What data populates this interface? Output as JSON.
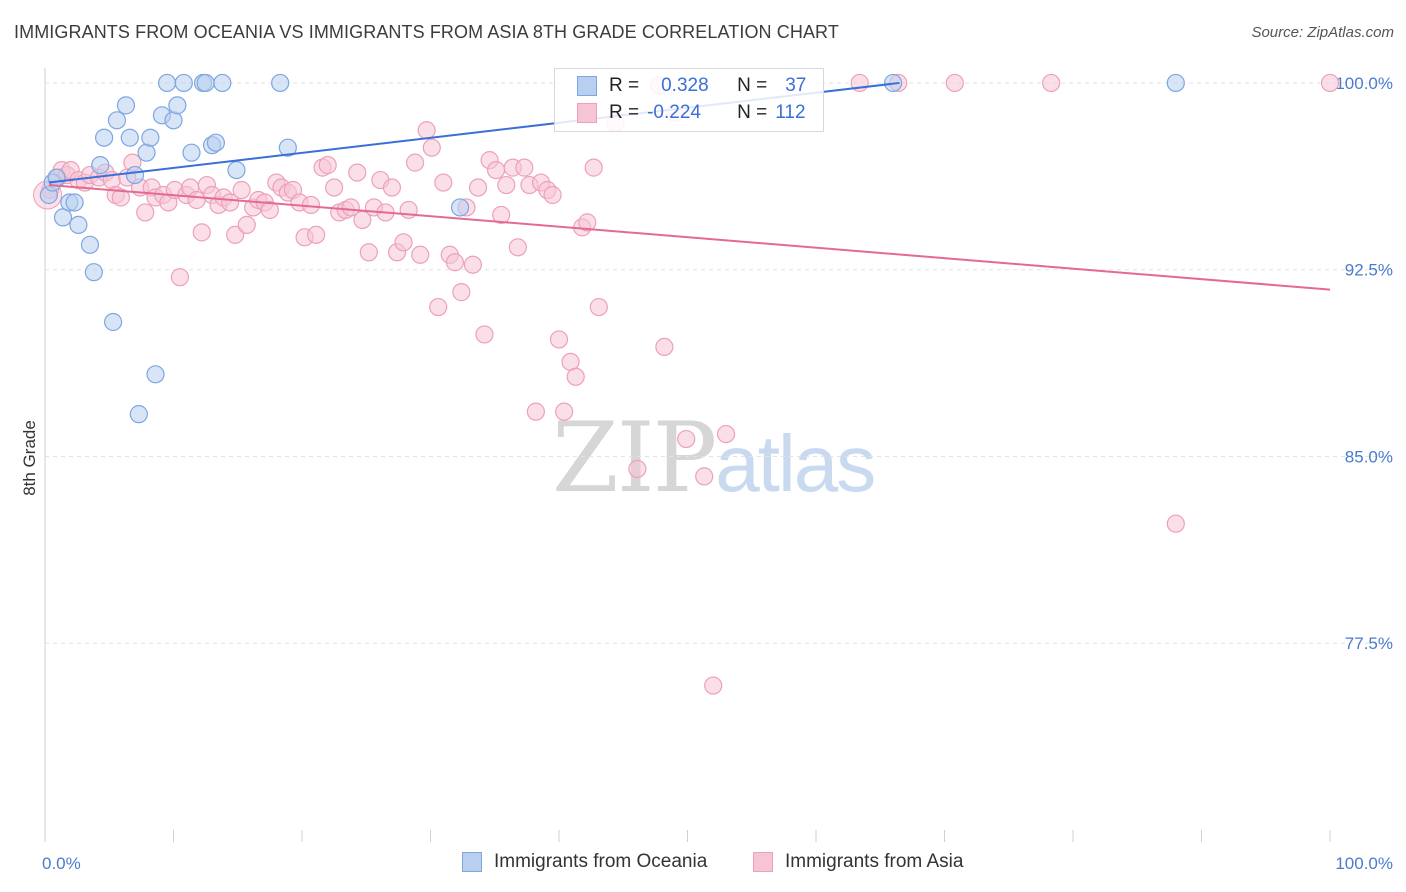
{
  "title": "IMMIGRANTS FROM OCEANIA VS IMMIGRANTS FROM ASIA 8TH GRADE CORRELATION CHART",
  "source": "Source: ZipAtlas.com",
  "legend": {
    "rows": [
      {
        "r_label": "R =",
        "r_value": "0.328",
        "n_label": "N =",
        "n_value": "37",
        "color": "#7ea6e0"
      },
      {
        "r_label": "R =",
        "r_value": "-0.224",
        "n_label": "N =",
        "n_value": "112",
        "color": "#f0a0bc"
      }
    ]
  },
  "bottom_legend": [
    "Immigrants from Oceania",
    "Immigrants from Asia"
  ],
  "watermark": {
    "zip": "ZIP",
    "atlas": "atlas"
  },
  "colors": {
    "blue_fill": "#b8cff0",
    "blue_stroke": "#7ea6e0",
    "blue_line": "#3a6fd8",
    "pink_fill": "#f7c4d5",
    "pink_stroke": "#eda0bb",
    "pink_line": "#e46a92",
    "tick_text": "#4a7bd0"
  },
  "chart_data": {
    "type": "scatter",
    "title": "IMMIGRANTS FROM OCEANIA VS IMMIGRANTS FROM ASIA 8TH GRADE CORRELATION CHART",
    "xlabel": "",
    "ylabel": "8th Grade",
    "xlim": [
      0,
      100
    ],
    "ylim": [
      70.0,
      100.6
    ],
    "x_tick_labels": [
      "0.0%",
      "100.0%"
    ],
    "y_ticks": [
      77.5,
      85.0,
      92.5,
      100.0
    ],
    "y_tick_labels": [
      "77.5%",
      "85.0%",
      "92.5%",
      "100.0%"
    ],
    "series": [
      {
        "name": "Immigrants from Oceania",
        "r": 0.328,
        "n": 37,
        "trend": {
          "x": [
            0.3,
            66.5
          ],
          "y": [
            96.0,
            100.0
          ]
        },
        "points": [
          [
            0.3,
            95.5
          ],
          [
            0.6,
            96.0
          ],
          [
            0.9,
            96.2
          ],
          [
            1.4,
            94.6
          ],
          [
            1.9,
            95.2
          ],
          [
            2.3,
            95.2
          ],
          [
            2.6,
            94.3
          ],
          [
            3.5,
            93.5
          ],
          [
            3.8,
            92.4
          ],
          [
            4.3,
            96.7
          ],
          [
            4.6,
            97.8
          ],
          [
            5.3,
            90.4
          ],
          [
            5.6,
            98.5
          ],
          [
            6.3,
            99.1
          ],
          [
            6.6,
            97.8
          ],
          [
            7.0,
            96.3
          ],
          [
            7.3,
            86.7
          ],
          [
            7.9,
            97.2
          ],
          [
            8.2,
            97.8
          ],
          [
            8.6,
            88.3
          ],
          [
            9.1,
            98.7
          ],
          [
            9.5,
            100.0
          ],
          [
            10.0,
            98.5
          ],
          [
            10.3,
            99.1
          ],
          [
            10.8,
            100.0
          ],
          [
            11.4,
            97.2
          ],
          [
            12.3,
            100.0
          ],
          [
            12.5,
            100.0
          ],
          [
            13.0,
            97.5
          ],
          [
            13.3,
            97.6
          ],
          [
            13.8,
            100.0
          ],
          [
            14.9,
            96.5
          ],
          [
            18.3,
            100.0
          ],
          [
            18.9,
            97.4
          ],
          [
            32.3,
            95.0
          ],
          [
            66.0,
            100.0
          ],
          [
            88.0,
            100.0
          ]
        ]
      },
      {
        "name": "Immigrants from Asia",
        "r": -0.224,
        "n": 112,
        "trend": {
          "x": [
            0.3,
            100.0
          ],
          "y": [
            95.9,
            91.7
          ]
        },
        "points": [
          [
            0.4,
            95.7
          ],
          [
            1.0,
            96.2
          ],
          [
            1.3,
            96.5
          ],
          [
            1.7,
            96.3
          ],
          [
            2.0,
            96.5
          ],
          [
            2.6,
            96.1
          ],
          [
            3.1,
            96.0
          ],
          [
            3.5,
            96.3
          ],
          [
            4.2,
            96.2
          ],
          [
            4.7,
            96.4
          ],
          [
            5.2,
            96.1
          ],
          [
            5.5,
            95.5
          ],
          [
            5.9,
            95.4
          ],
          [
            6.4,
            96.2
          ],
          [
            6.8,
            96.8
          ],
          [
            7.4,
            95.8
          ],
          [
            7.8,
            94.8
          ],
          [
            8.3,
            95.8
          ],
          [
            8.6,
            95.4
          ],
          [
            9.2,
            95.5
          ],
          [
            9.6,
            95.2
          ],
          [
            10.1,
            95.7
          ],
          [
            10.5,
            92.2
          ],
          [
            11.0,
            95.5
          ],
          [
            11.3,
            95.8
          ],
          [
            11.8,
            95.3
          ],
          [
            12.2,
            94.0
          ],
          [
            12.6,
            95.9
          ],
          [
            13.0,
            95.5
          ],
          [
            13.5,
            95.1
          ],
          [
            13.9,
            95.4
          ],
          [
            14.4,
            95.2
          ],
          [
            14.8,
            93.9
          ],
          [
            15.3,
            95.7
          ],
          [
            15.7,
            94.3
          ],
          [
            16.2,
            95.0
          ],
          [
            16.6,
            95.3
          ],
          [
            17.1,
            95.2
          ],
          [
            17.5,
            94.9
          ],
          [
            18.0,
            96.0
          ],
          [
            18.4,
            95.8
          ],
          [
            18.9,
            95.6
          ],
          [
            19.3,
            95.7
          ],
          [
            19.8,
            95.2
          ],
          [
            20.2,
            93.8
          ],
          [
            20.7,
            95.1
          ],
          [
            21.1,
            93.9
          ],
          [
            21.6,
            96.6
          ],
          [
            22.0,
            96.7
          ],
          [
            22.5,
            95.8
          ],
          [
            22.9,
            94.8
          ],
          [
            23.4,
            94.9
          ],
          [
            23.8,
            95.0
          ],
          [
            24.3,
            96.4
          ],
          [
            24.7,
            94.5
          ],
          [
            25.2,
            93.2
          ],
          [
            25.6,
            95.0
          ],
          [
            26.1,
            96.1
          ],
          [
            26.5,
            94.8
          ],
          [
            27.0,
            95.8
          ],
          [
            27.4,
            93.2
          ],
          [
            27.9,
            93.6
          ],
          [
            28.3,
            94.9
          ],
          [
            28.8,
            96.8
          ],
          [
            29.2,
            93.1
          ],
          [
            29.7,
            98.1
          ],
          [
            30.1,
            97.4
          ],
          [
            30.6,
            91.0
          ],
          [
            31.0,
            96.0
          ],
          [
            31.5,
            93.1
          ],
          [
            31.9,
            92.8
          ],
          [
            32.4,
            91.6
          ],
          [
            32.8,
            95.0
          ],
          [
            33.3,
            92.7
          ],
          [
            33.7,
            95.8
          ],
          [
            34.2,
            89.9
          ],
          [
            34.6,
            96.9
          ],
          [
            35.1,
            96.5
          ],
          [
            35.5,
            94.7
          ],
          [
            35.9,
            95.9
          ],
          [
            36.4,
            96.6
          ],
          [
            36.8,
            93.4
          ],
          [
            37.3,
            96.6
          ],
          [
            37.7,
            95.9
          ],
          [
            38.2,
            86.8
          ],
          [
            38.6,
            96.0
          ],
          [
            39.1,
            95.7
          ],
          [
            39.5,
            95.5
          ],
          [
            40.0,
            89.7
          ],
          [
            40.4,
            86.8
          ],
          [
            40.9,
            88.8
          ],
          [
            41.3,
            88.2
          ],
          [
            41.8,
            94.2
          ],
          [
            42.2,
            94.4
          ],
          [
            42.7,
            96.6
          ],
          [
            43.1,
            91.0
          ],
          [
            44.4,
            98.4
          ],
          [
            46.1,
            84.5
          ],
          [
            47.8,
            99.9
          ],
          [
            48.2,
            89.4
          ],
          [
            49.0,
            98.8
          ],
          [
            49.9,
            85.7
          ],
          [
            51.3,
            84.2
          ],
          [
            52.0,
            75.8
          ],
          [
            53.0,
            85.9
          ],
          [
            63.4,
            100.0
          ],
          [
            66.4,
            100.0
          ],
          [
            70.8,
            100.0
          ],
          [
            78.3,
            100.0
          ],
          [
            88.0,
            82.3
          ],
          [
            100.0,
            100.0
          ]
        ]
      }
    ]
  }
}
